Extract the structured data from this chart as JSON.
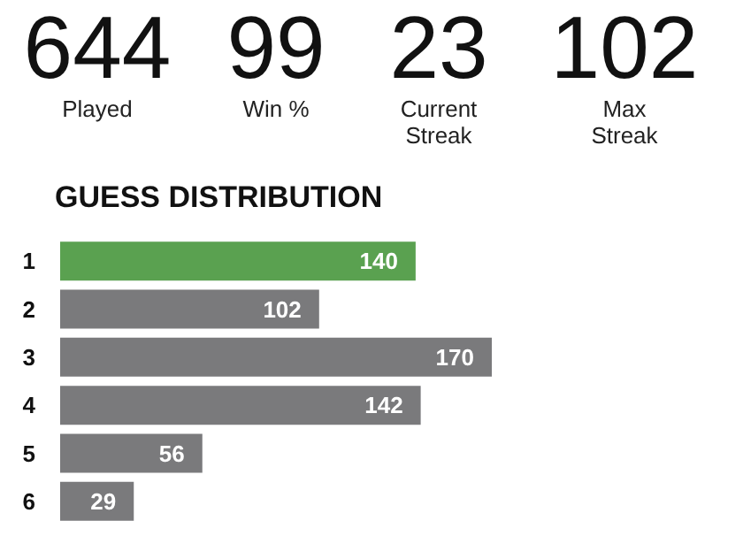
{
  "chart_data": [
    {
      "type": "other",
      "categories": [
        "Played",
        "Win %",
        "Current Streak",
        "Max Streak"
      ],
      "values": [
        644,
        99,
        23,
        102
      ],
      "data_labels": true
    },
    {
      "type": "bar",
      "orientation": "horizontal",
      "title": "GUESS DISTRIBUTION",
      "categories": [
        "1",
        "2",
        "3",
        "4",
        "5",
        "6"
      ],
      "values": [
        140,
        102,
        170,
        142,
        56,
        29
      ],
      "colors": [
        "#5aa150",
        "#7a7a7c",
        "#7a7a7c",
        "#7a7a7c",
        "#7a7a7c",
        "#7a7a7c"
      ],
      "data_labels": true
    }
  ]
}
